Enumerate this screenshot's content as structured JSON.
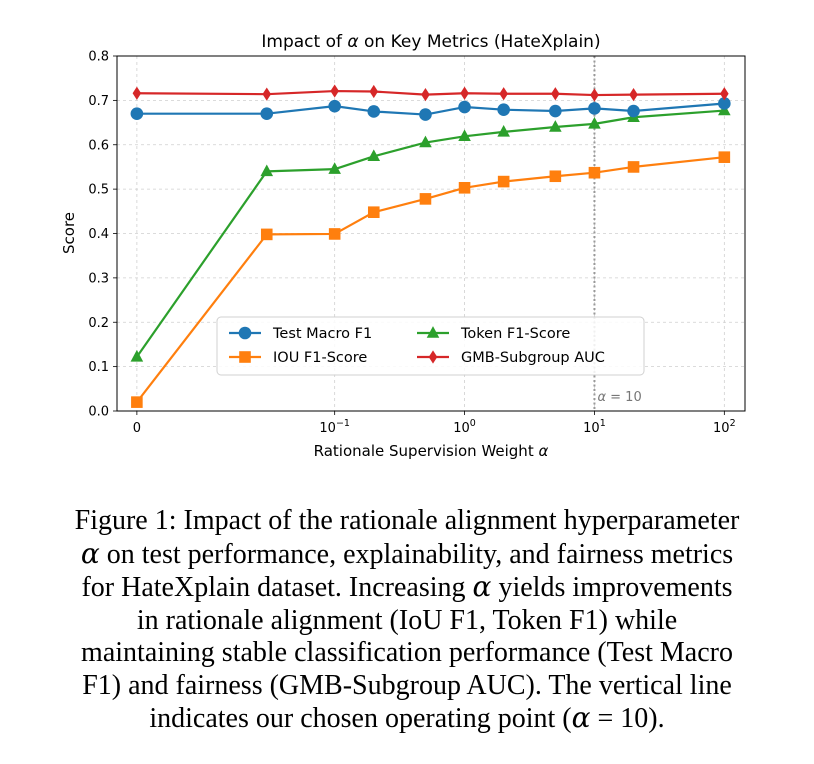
{
  "chart_data": {
    "type": "line",
    "title_prefix": "Impact of ",
    "title_symbol": "α",
    "title_suffix": " on Key Metrics (HateXplain)",
    "xlabel_prefix": "Rationale Supervision Weight ",
    "xlabel_symbol": "α",
    "ylabel": "Score",
    "x": [
      0,
      0.03,
      0.1,
      0.2,
      0.5,
      1,
      2,
      5,
      10,
      20,
      100
    ],
    "x_ticks": [
      {
        "value": 0,
        "base": "0",
        "exp": ""
      },
      {
        "value": 0.1,
        "base": "10",
        "exp": "−1"
      },
      {
        "value": 1,
        "base": "10",
        "exp": "0"
      },
      {
        "value": 10,
        "base": "10",
        "exp": "1"
      },
      {
        "value": 100,
        "base": "10",
        "exp": "2"
      }
    ],
    "x_scale": "symlog",
    "ylim": [
      0,
      0.8
    ],
    "y_ticks": [
      "0.0",
      "0.1",
      "0.2",
      "0.3",
      "0.4",
      "0.5",
      "0.6",
      "0.7",
      "0.8"
    ],
    "grid": true,
    "legend_position": "lower-center",
    "series": [
      {
        "name": "Test Macro F1",
        "color": "#1f77b4",
        "marker": "circle",
        "values": [
          0.67,
          0.67,
          0.687,
          0.675,
          0.668,
          0.685,
          0.679,
          0.676,
          0.682,
          0.676,
          0.693
        ]
      },
      {
        "name": "IOU F1-Score",
        "color": "#ff7f0e",
        "marker": "square",
        "values": [
          0.02,
          0.398,
          0.399,
          0.448,
          0.478,
          0.503,
          0.517,
          0.529,
          0.537,
          0.55,
          0.572
        ]
      },
      {
        "name": "Token F1-Score",
        "color": "#2ca02c",
        "marker": "triangle",
        "values": [
          0.122,
          0.54,
          0.545,
          0.574,
          0.605,
          0.619,
          0.629,
          0.64,
          0.647,
          0.662,
          0.677
        ]
      },
      {
        "name": "GMB-Subgroup AUC",
        "color": "#d62728",
        "marker": "diamond",
        "values": [
          0.716,
          0.714,
          0.721,
          0.72,
          0.713,
          0.716,
          0.715,
          0.715,
          0.712,
          0.713,
          0.715
        ]
      }
    ],
    "vline": {
      "x": 10,
      "label_symbol": "α",
      "label_text": " = 10"
    }
  },
  "caption": {
    "line1": "Figure 1: Impact of the rationale alignment hyperparameter",
    "line2_sym": "α",
    "line2_rest": " on test performance, explainability, and fairness metrics",
    "line3_pre": "for HateXplain dataset. Increasing ",
    "line3_sym": "α",
    "line3_rest": " yields improvements",
    "line4": "in rationale alignment (IoU F1, Token F1) while",
    "line5": "maintaining stable classification performance (Test Macro",
    "line6": "F1) and fairness (GMB-Subgroup AUC). The vertical line",
    "line7_pre": "indicates our chosen operating point (",
    "line7_sym": "α",
    "line7_eq": " = 10",
    "line7_post": ")."
  }
}
